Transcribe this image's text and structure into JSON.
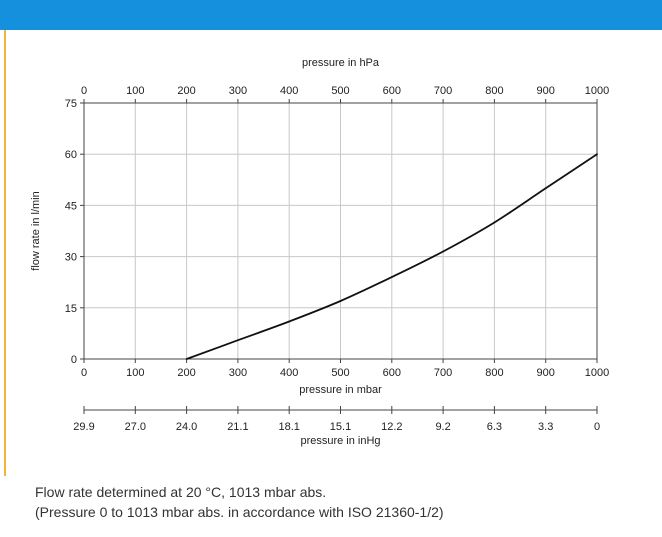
{
  "colors": {
    "header_bar": "#1590dc",
    "left_rule": "#f1b43c",
    "grid": "#c8c8c8",
    "curve": "#111111"
  },
  "chart_data": {
    "type": "line",
    "grid": true,
    "x": [
      200,
      300,
      400,
      500,
      600,
      700,
      800,
      900,
      1000
    ],
    "y": [
      0,
      5.5,
      11.0,
      17.0,
      24.0,
      31.5,
      40.0,
      50.0,
      60.0
    ],
    "xlabel": "pressure in mbar",
    "xlim": [
      0,
      1000
    ],
    "xticks": [
      "0",
      "100",
      "200",
      "300",
      "400",
      "500",
      "600",
      "700",
      "800",
      "900",
      "1000"
    ],
    "ylabel": "flow rate in l/min",
    "ylim": [
      0,
      75
    ],
    "yticks": [
      "0",
      "15",
      "30",
      "45",
      "60",
      "75"
    ],
    "top_axis": {
      "label": "pressure in hPa",
      "ticks": [
        "0",
        "100",
        "200",
        "300",
        "400",
        "500",
        "600",
        "700",
        "800",
        "900",
        "1000"
      ]
    },
    "inhg_axis": {
      "label": "pressure in inHg",
      "ticks": [
        "29.9",
        "27.0",
        "24.0",
        "21.1",
        "18.1",
        "15.1",
        "12.2",
        "9.2",
        "6.3",
        "3.3",
        "0"
      ]
    }
  },
  "footnote": {
    "line1": "Flow rate determined at 20 °C, 1013 mbar abs.",
    "line2": "(Pressure 0 to 1013 mbar abs. in accordance with ISO 21360-1/2)"
  }
}
